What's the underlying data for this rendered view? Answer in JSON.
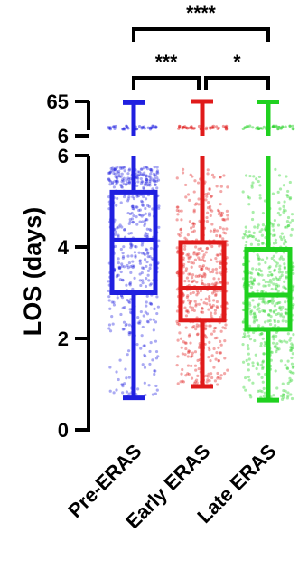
{
  "chart_data": {
    "type": "box",
    "ylabel": "LOS (days)",
    "y_axis_segments": [
      {
        "range": [
          0,
          6
        ],
        "ticks": [
          "0",
          "2",
          "4",
          "6"
        ]
      },
      {
        "range": [
          6,
          65
        ],
        "ticks": [
          "6",
          "65"
        ]
      }
    ],
    "categories": [
      "Pre-ERAS",
      "Early ERAS",
      "Late ERAS"
    ],
    "series": [
      {
        "category": "Pre-ERAS",
        "color": "#1f1fe0",
        "min": 0.7,
        "q1": 3.0,
        "median": 4.15,
        "q3": 5.2,
        "max": 62
      },
      {
        "category": "Early ERAS",
        "color": "#e01a1a",
        "min": 0.95,
        "q1": 2.4,
        "median": 3.1,
        "q3": 4.1,
        "max": 65
      },
      {
        "category": "Late ERAS",
        "color": "#1fd11f",
        "min": 0.65,
        "q1": 2.2,
        "median": 2.95,
        "q3": 3.95,
        "max": 64
      }
    ],
    "significance": [
      {
        "from": "Pre-ERAS",
        "to": "Late ERAS",
        "label": "****"
      },
      {
        "from": "Pre-ERAS",
        "to": "Early ERAS",
        "label": "***"
      },
      {
        "from": "Early ERAS",
        "to": "Late ERAS",
        "label": "*"
      }
    ],
    "legend": "none",
    "grid": false
  }
}
